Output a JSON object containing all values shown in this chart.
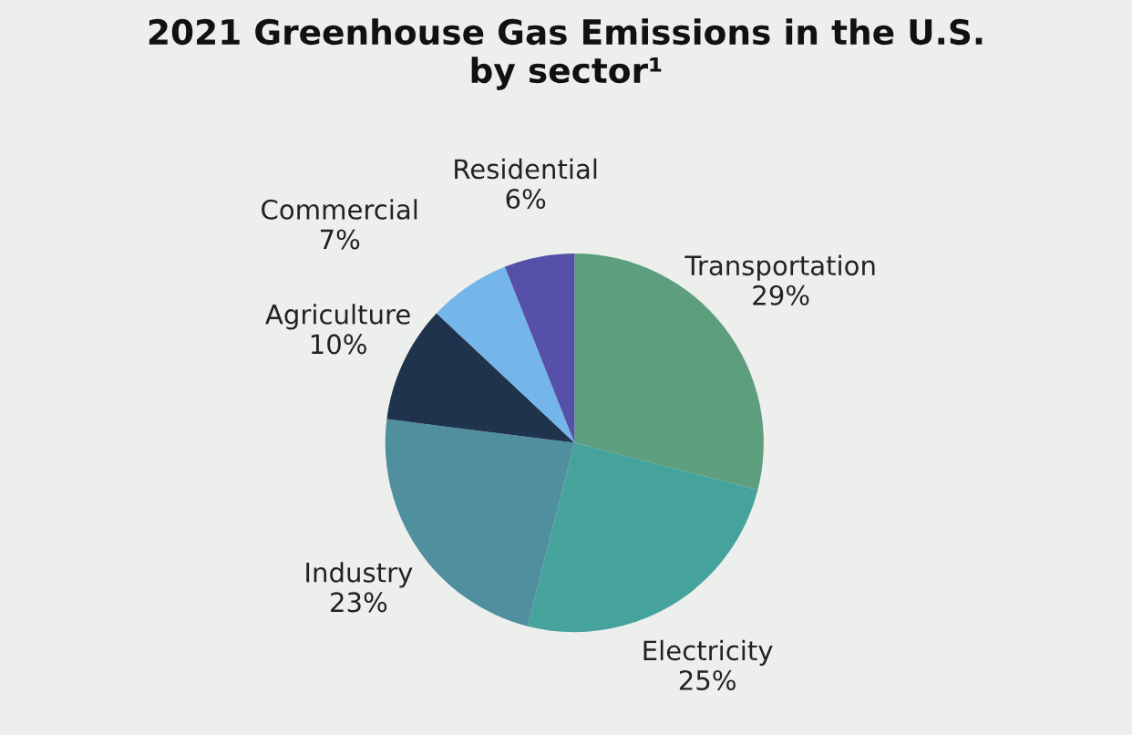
{
  "chart_data": {
    "type": "pie",
    "title": "2021 Greenhouse Gas Emissions in the U.S. by sector¹",
    "categories": [
      "Transportation",
      "Electricity",
      "Industry",
      "Agriculture",
      "Commercial",
      "Residential"
    ],
    "values": [
      29,
      25,
      23,
      10,
      7,
      6
    ],
    "value_labels": [
      "29%",
      "25%",
      "23%",
      "10%",
      "7%",
      "6%"
    ],
    "colors": [
      "#5c9e7e",
      "#45a39c",
      "#4f8f9e",
      "#1f334d",
      "#74b5ea",
      "#5551a8"
    ]
  }
}
